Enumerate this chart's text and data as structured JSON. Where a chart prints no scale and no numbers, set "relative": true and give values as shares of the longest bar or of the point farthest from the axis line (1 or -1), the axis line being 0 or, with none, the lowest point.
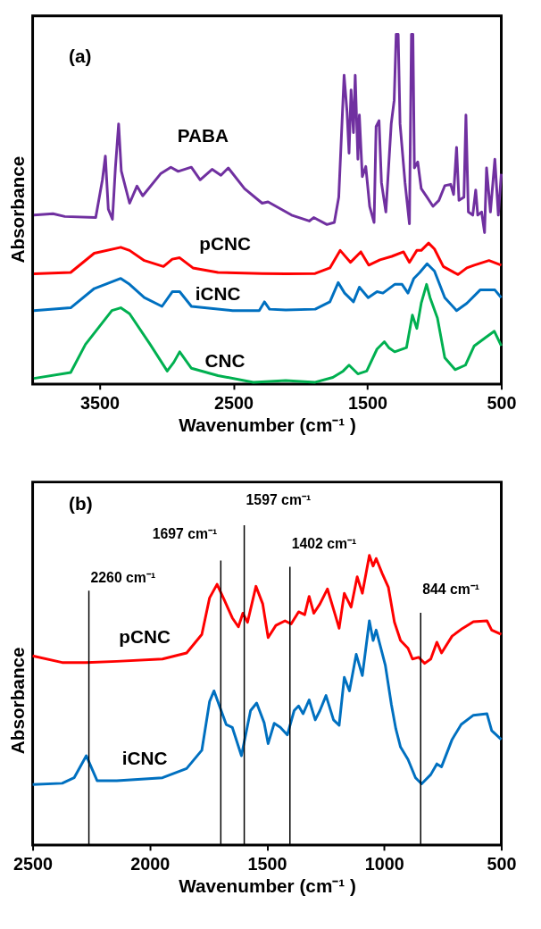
{
  "chart_data": [
    {
      "type": "line",
      "relative": true,
      "xlabel": "Wavenumber (cm⁻¹ )",
      "ylabel": "Absorbance",
      "xlim": [
        4000,
        500
      ],
      "xticks": [
        3500,
        2500,
        1500,
        500
      ],
      "grid": false,
      "annotations": [
        "(a)"
      ],
      "series": [
        {
          "name": "PABA",
          "color": "#7030a0",
          "x": [
            3991,
            3848,
            3760,
            3529,
            3479,
            3457,
            3435,
            3404,
            3382,
            3358,
            3338,
            3276,
            3221,
            3178,
            3045,
            2968,
            2913,
            2815,
            2749,
            2660,
            2594,
            2539,
            2418,
            2286,
            2242,
            2066,
            1934,
            1901,
            1802,
            1747,
            1714,
            1674,
            1652,
            1637,
            1622,
            1604,
            1591,
            1571,
            1560,
            1538,
            1512,
            1483,
            1450,
            1435,
            1413,
            1395,
            1362,
            1322,
            1300,
            1285,
            1270,
            1256,
            1219,
            1186,
            1171,
            1160,
            1149,
            1124,
            1098,
            1054,
            1010,
            966,
            922,
            878,
            856,
            834,
            816,
            779,
            764,
            746,
            713,
            691,
            676,
            647,
            625,
            610,
            581,
            548,
            522,
            500
          ],
          "values": [
            0.483,
            0.487,
            0.479,
            0.476,
            0.584,
            0.652,
            0.5,
            0.471,
            0.618,
            0.744,
            0.609,
            0.517,
            0.566,
            0.538,
            0.601,
            0.62,
            0.608,
            0.62,
            0.584,
            0.614,
            0.597,
            0.618,
            0.559,
            0.517,
            0.521,
            0.483,
            0.466,
            0.476,
            0.456,
            0.462,
            0.534,
            0.883,
            0.778,
            0.66,
            0.841,
            0.719,
            0.883,
            0.643,
            0.769,
            0.593,
            0.622,
            0.508,
            0.462,
            0.736,
            0.753,
            0.576,
            0.492,
            0.744,
            0.811,
            1.0,
            1.0,
            0.744,
            0.576,
            0.458,
            1.0,
            1.0,
            0.618,
            0.635,
            0.559,
            0.534,
            0.508,
            0.525,
            0.567,
            0.571,
            0.542,
            0.677,
            0.525,
            0.534,
            0.769,
            0.492,
            0.483,
            0.555,
            0.483,
            0.492,
            0.433,
            0.618,
            0.492,
            0.643,
            0.483,
            0.601
          ]
        },
        {
          "name": "pCNC",
          "color": "#ff0000",
          "x": [
            3991,
            3716,
            3540,
            3342,
            3276,
            3166,
            3023,
            2957,
            2902,
            2803,
            2616,
            2286,
            2110,
            1890,
            1780,
            1703,
            1626,
            1549,
            1490,
            1406,
            1318,
            1230,
            1186,
            1131,
            1098,
            1043,
            999,
            933,
            823,
            757,
            702,
            592,
            500
          ],
          "values": [
            0.315,
            0.319,
            0.374,
            0.391,
            0.382,
            0.353,
            0.336,
            0.357,
            0.361,
            0.332,
            0.319,
            0.316,
            0.315,
            0.316,
            0.332,
            0.382,
            0.348,
            0.378,
            0.34,
            0.355,
            0.365,
            0.378,
            0.348,
            0.382,
            0.382,
            0.403,
            0.386,
            0.336,
            0.313,
            0.332,
            0.34,
            0.353,
            0.34
          ]
        },
        {
          "name": "iCNC",
          "color": "#0070c0",
          "x": [
            3991,
            3716,
            3540,
            3342,
            3276,
            3166,
            3034,
            2957,
            2902,
            2814,
            2506,
            2308,
            2269,
            2231,
            2110,
            1890,
            1780,
            1718,
            1670,
            1604,
            1560,
            1494,
            1428,
            1384,
            1296,
            1241,
            1197,
            1153,
            1109,
            1054,
            999,
            922,
            834,
            757,
            658,
            548,
            500
          ],
          "values": [
            0.21,
            0.218,
            0.273,
            0.302,
            0.285,
            0.247,
            0.222,
            0.264,
            0.264,
            0.222,
            0.21,
            0.21,
            0.235,
            0.214,
            0.212,
            0.214,
            0.235,
            0.29,
            0.26,
            0.235,
            0.277,
            0.247,
            0.264,
            0.26,
            0.285,
            0.285,
            0.26,
            0.302,
            0.319,
            0.344,
            0.323,
            0.247,
            0.21,
            0.231,
            0.269,
            0.269,
            0.247
          ]
        },
        {
          "name": "CNC",
          "color": "#00b050",
          "x": [
            3991,
            3716,
            3606,
            3408,
            3342,
            3276,
            3122,
            2995,
            2946,
            2902,
            2814,
            2616,
            2352,
            2110,
            1890,
            1758,
            1681,
            1637,
            1571,
            1505,
            1428,
            1373,
            1340,
            1296,
            1208,
            1164,
            1131,
            1098,
            1058,
            1032,
            977,
            922,
            845,
            768,
            702,
            614,
            552,
            500
          ],
          "values": [
            0.016,
            0.033,
            0.113,
            0.21,
            0.218,
            0.201,
            0.113,
            0.037,
            0.062,
            0.092,
            0.045,
            0.024,
            0.005,
            0.01,
            0.005,
            0.019,
            0.037,
            0.054,
            0.029,
            0.037,
            0.1,
            0.121,
            0.104,
            0.092,
            0.104,
            0.197,
            0.159,
            0.231,
            0.285,
            0.247,
            0.189,
            0.075,
            0.041,
            0.054,
            0.109,
            0.134,
            0.151,
            0.109
          ]
        }
      ]
    },
    {
      "type": "line",
      "relative": true,
      "xlabel": "Wavenumber (cm⁻¹ )",
      "ylabel": "Absorbance",
      "xlim": [
        2500,
        500
      ],
      "xticks": [
        2500,
        2000,
        1500,
        1000,
        500
      ],
      "grid": false,
      "annotations": [
        "(b)"
      ],
      "ref_lines": [
        {
          "axis": "x",
          "value": 2260,
          "label": "2260 cm⁻¹"
        },
        {
          "axis": "x",
          "value": 1697,
          "label": "1697 cm⁻¹"
        },
        {
          "axis": "x",
          "value": 1597,
          "label": "1597 cm⁻¹"
        },
        {
          "axis": "x",
          "value": 1402,
          "label": "1402 cm⁻¹"
        },
        {
          "axis": "x",
          "value": 844,
          "label": "844 cm⁻¹"
        }
      ],
      "series": [
        {
          "name": "pCNC",
          "color": "#ff0000",
          "x": [
            2500,
            2374,
            2271,
            2141,
            1946,
            1843,
            1778,
            1745,
            1713,
            1680,
            1648,
            1622,
            1603,
            1583,
            1547,
            1518,
            1495,
            1462,
            1423,
            1397,
            1365,
            1339,
            1320,
            1300,
            1274,
            1242,
            1209,
            1192,
            1170,
            1141,
            1115,
            1093,
            1063,
            1047,
            1034,
            1008,
            982,
            956,
            930,
            898,
            879,
            853,
            827,
            801,
            775,
            755,
            710,
            665,
            619,
            561,
            541,
            500
          ],
          "values": [
            0.653,
            0.63,
            0.63,
            0.634,
            0.642,
            0.663,
            0.727,
            0.853,
            0.9,
            0.842,
            0.784,
            0.753,
            0.8,
            0.769,
            0.893,
            0.832,
            0.716,
            0.758,
            0.774,
            0.763,
            0.805,
            0.795,
            0.858,
            0.8,
            0.832,
            0.884,
            0.795,
            0.748,
            0.869,
            0.821,
            0.926,
            0.869,
            1.0,
            0.963,
            0.989,
            0.937,
            0.89,
            0.769,
            0.706,
            0.679,
            0.642,
            0.648,
            0.627,
            0.642,
            0.7,
            0.663,
            0.721,
            0.748,
            0.771,
            0.774,
            0.742,
            0.727
          ]
        },
        {
          "name": "iCNC",
          "color": "#0070c0",
          "x": [
            2500,
            2374,
            2323,
            2271,
            2225,
            2141,
            1946,
            1843,
            1778,
            1745,
            1726,
            1700,
            1674,
            1648,
            1609,
            1570,
            1544,
            1512,
            1495,
            1469,
            1443,
            1413,
            1384,
            1365,
            1346,
            1320,
            1294,
            1274,
            1248,
            1216,
            1192,
            1170,
            1148,
            1119,
            1093,
            1063,
            1047,
            1034,
            995,
            969,
            950,
            930,
            898,
            866,
            840,
            801,
            775,
            755,
            710,
            671,
            619,
            561,
            541,
            500
          ],
          "values": [
            0.209,
            0.213,
            0.232,
            0.308,
            0.222,
            0.222,
            0.232,
            0.264,
            0.327,
            0.495,
            0.532,
            0.474,
            0.416,
            0.406,
            0.308,
            0.464,
            0.49,
            0.422,
            0.35,
            0.42,
            0.406,
            0.38,
            0.464,
            0.48,
            0.453,
            0.501,
            0.432,
            0.464,
            0.516,
            0.432,
            0.413,
            0.579,
            0.532,
            0.658,
            0.585,
            0.774,
            0.706,
            0.742,
            0.621,
            0.485,
            0.401,
            0.338,
            0.295,
            0.232,
            0.211,
            0.243,
            0.28,
            0.27,
            0.364,
            0.416,
            0.448,
            0.453,
            0.395,
            0.364
          ]
        }
      ]
    }
  ]
}
